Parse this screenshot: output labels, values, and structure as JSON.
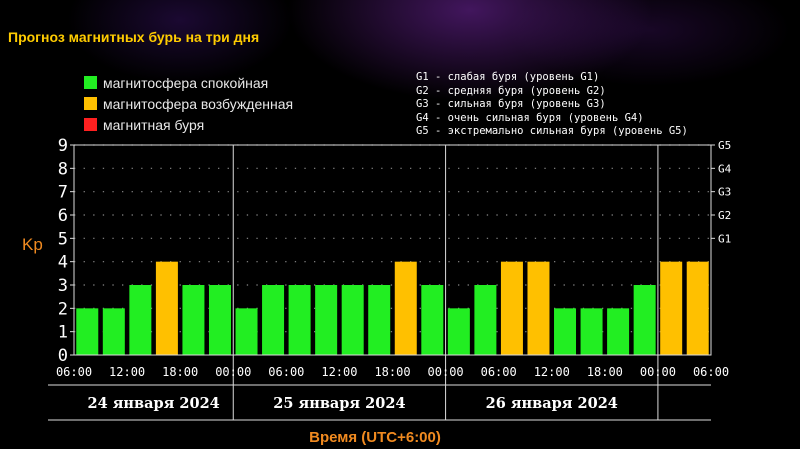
{
  "title": "Прогноз магнитных бурь на три дня",
  "legend": {
    "items": [
      {
        "label": "магнитосфера спокойная",
        "color": "#22ee22"
      },
      {
        "label": "магнитосфера возбужденная",
        "color": "#ffc000"
      },
      {
        "label": "магнитная буря",
        "color": "#ff2020"
      }
    ],
    "storm_levels": [
      "G1 - слабая буря (уровень G1)",
      "G2 - средняя буря (уровень G2)",
      "G3 - сильная буря (уровень G3)",
      "G4 - очень сильная буря (уровень G4)",
      "G5 - экстремально сильная буря (уровень G5)"
    ]
  },
  "chart_data": {
    "type": "bar",
    "ylabel": "Kp",
    "xlabel": "Время (UTC+6:00)",
    "ylim": [
      0,
      9
    ],
    "y_ticks": [
      "0",
      "1",
      "2",
      "3",
      "4",
      "5",
      "6",
      "7",
      "8",
      "9"
    ],
    "right_ticks": [
      {
        "value": 5,
        "label": "G1"
      },
      {
        "value": 6,
        "label": "G2"
      },
      {
        "value": 7,
        "label": "G3"
      },
      {
        "value": 8,
        "label": "G4"
      },
      {
        "value": 9,
        "label": "G5"
      }
    ],
    "x_tick_labels": [
      "06:00",
      "12:00",
      "18:00",
      "00:00",
      "06:00",
      "12:00",
      "18:00",
      "00:00",
      "06:00",
      "12:00",
      "18:00",
      "00:00",
      "06:00"
    ],
    "days": [
      "24 января 2024",
      "25 января 2024",
      "26 января 2024"
    ],
    "values": [
      2,
      2,
      3,
      4,
      3,
      3,
      2,
      3,
      3,
      3,
      3,
      3,
      4,
      3,
      2,
      3,
      4,
      4,
      2,
      2,
      2,
      3,
      4,
      4
    ],
    "levels": [
      "quiet",
      "quiet",
      "quiet",
      "active",
      "quiet",
      "quiet",
      "quiet",
      "quiet",
      "quiet",
      "quiet",
      "quiet",
      "quiet",
      "active",
      "quiet",
      "quiet",
      "quiet",
      "active",
      "active",
      "quiet",
      "quiet",
      "quiet",
      "quiet",
      "active",
      "active"
    ],
    "colors": {
      "quiet": "#22ee22",
      "active": "#ffc000",
      "storm": "#ff2020",
      "axis_label": "#f08a20"
    },
    "grid": true,
    "legend_position": "top"
  }
}
